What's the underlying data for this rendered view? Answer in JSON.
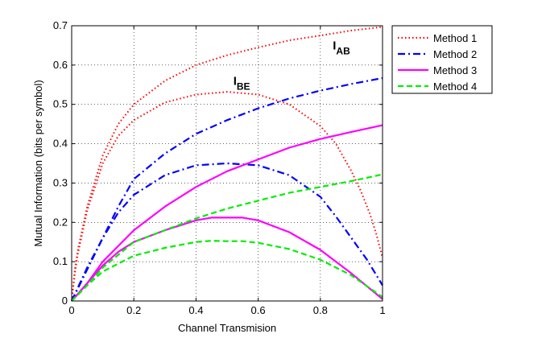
{
  "chart_data": {
    "type": "line",
    "title": "",
    "xlabel": "Channel Transmision",
    "ylabel": "Mutual Information (bits per symbol)",
    "xlim": [
      0,
      1
    ],
    "ylim": [
      0,
      0.7
    ],
    "xticks": [
      "0",
      "0.2",
      "0.4",
      "0.6",
      "0.8",
      "1"
    ],
    "yticks": [
      "0",
      "0.1",
      "0.2",
      "0.3",
      "0.4",
      "0.5",
      "0.6",
      "0.7"
    ],
    "grid": true,
    "legend_position": "outside-top-right",
    "annotations": [
      {
        "main": "I",
        "sub": "AB",
        "x": 0.84,
        "y": 0.64
      },
      {
        "main": "I",
        "sub": "BE",
        "x": 0.52,
        "y": 0.55
      }
    ],
    "series": [
      {
        "name": "Method 1",
        "color": "#ff0000",
        "style": "dotted",
        "curves": [
          {
            "label": "AB",
            "x": [
              0,
              0.01,
              0.02,
              0.05,
              0.1,
              0.15,
              0.2,
              0.3,
              0.4,
              0.5,
              0.6,
              0.7,
              0.8,
              0.9,
              1.0
            ],
            "y": [
              0,
              0.08,
              0.13,
              0.24,
              0.37,
              0.45,
              0.5,
              0.56,
              0.6,
              0.625,
              0.645,
              0.663,
              0.675,
              0.688,
              0.697
            ]
          },
          {
            "label": "BE",
            "x": [
              0,
              0.01,
              0.02,
              0.05,
              0.1,
              0.15,
              0.2,
              0.3,
              0.4,
              0.5,
              0.6,
              0.7,
              0.8,
              0.85,
              0.9,
              0.93,
              0.96,
              0.98,
              1.0
            ],
            "y": [
              0,
              0.07,
              0.12,
              0.23,
              0.35,
              0.42,
              0.46,
              0.505,
              0.525,
              0.532,
              0.525,
              0.5,
              0.445,
              0.4,
              0.33,
              0.28,
              0.22,
              0.17,
              0.11
            ]
          }
        ]
      },
      {
        "name": "Method 2",
        "color": "#0000ff",
        "style": "dashdot",
        "curves": [
          {
            "label": "AB",
            "x": [
              0,
              0.05,
              0.1,
              0.15,
              0.2,
              0.3,
              0.4,
              0.5,
              0.6,
              0.7,
              0.8,
              0.9,
              1.0
            ],
            "y": [
              0,
              0.085,
              0.16,
              0.24,
              0.31,
              0.375,
              0.425,
              0.46,
              0.49,
              0.515,
              0.535,
              0.552,
              0.567
            ]
          },
          {
            "label": "BE",
            "x": [
              0,
              0.05,
              0.1,
              0.15,
              0.2,
              0.3,
              0.4,
              0.5,
              0.6,
              0.7,
              0.8,
              0.85,
              0.9,
              0.95,
              1.0
            ],
            "y": [
              0,
              0.08,
              0.16,
              0.225,
              0.27,
              0.32,
              0.345,
              0.35,
              0.345,
              0.32,
              0.265,
              0.215,
              0.16,
              0.105,
              0.04
            ]
          }
        ]
      },
      {
        "name": "Method 3",
        "color": "#ff00ff",
        "style": "solid",
        "curves": [
          {
            "label": "AB",
            "x": [
              0,
              0.05,
              0.1,
              0.2,
              0.3,
              0.4,
              0.5,
              0.6,
              0.7,
              0.8,
              0.9,
              1.0
            ],
            "y": [
              0,
              0.045,
              0.1,
              0.18,
              0.24,
              0.29,
              0.33,
              0.36,
              0.39,
              0.412,
              0.43,
              0.447
            ]
          },
          {
            "label": "BE",
            "x": [
              0,
              0.05,
              0.1,
              0.15,
              0.2,
              0.3,
              0.4,
              0.45,
              0.5,
              0.55,
              0.6,
              0.7,
              0.8,
              0.9,
              1.0
            ],
            "y": [
              0,
              0.045,
              0.09,
              0.125,
              0.15,
              0.18,
              0.205,
              0.212,
              0.212,
              0.212,
              0.205,
              0.175,
              0.13,
              0.07,
              0.005
            ]
          }
        ]
      },
      {
        "name": "Method 4",
        "color": "#00ee00",
        "style": "dashed",
        "curves": [
          {
            "label": "AB",
            "x": [
              0,
              0.05,
              0.1,
              0.2,
              0.3,
              0.4,
              0.5,
              0.6,
              0.7,
              0.8,
              0.9,
              1.0
            ],
            "y": [
              0,
              0.04,
              0.085,
              0.15,
              0.18,
              0.21,
              0.235,
              0.255,
              0.275,
              0.29,
              0.305,
              0.322
            ]
          },
          {
            "label": "BE",
            "x": [
              0,
              0.05,
              0.1,
              0.2,
              0.3,
              0.4,
              0.45,
              0.5,
              0.55,
              0.6,
              0.7,
              0.8,
              0.9,
              1.0
            ],
            "y": [
              0,
              0.04,
              0.075,
              0.115,
              0.135,
              0.15,
              0.153,
              0.152,
              0.152,
              0.148,
              0.132,
              0.105,
              0.065,
              0.01
            ]
          }
        ]
      }
    ]
  }
}
